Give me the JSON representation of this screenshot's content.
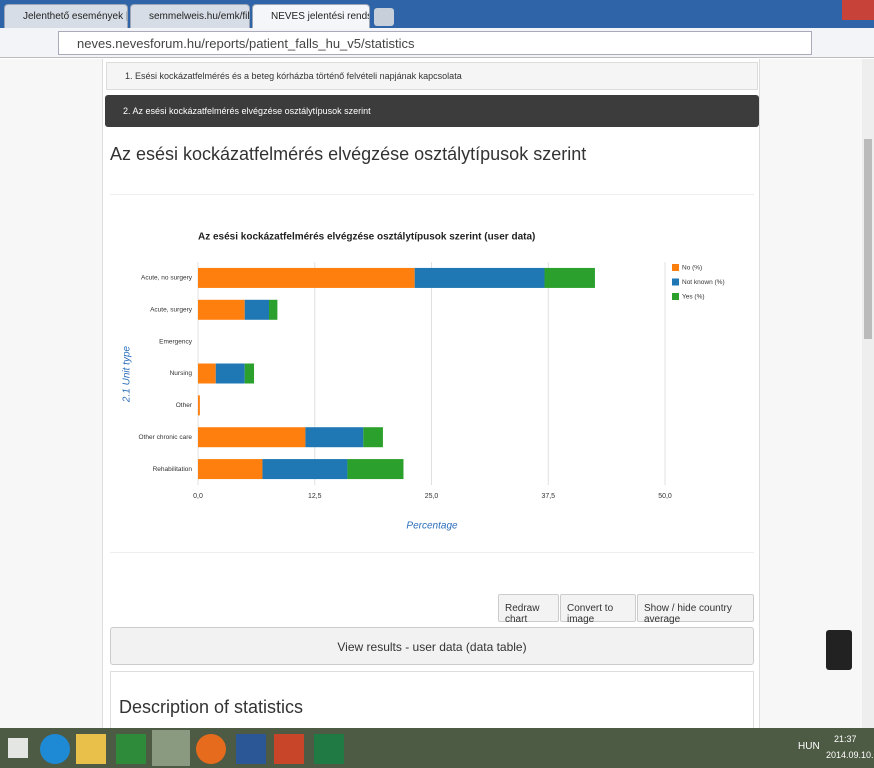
{
  "browser": {
    "tabs": [
      "Jelenthető események | Eg",
      "semmelweis.hu/emk/files",
      "NEVES jelentési rendszer |"
    ],
    "url": "neves.nevesforum.hu/reports/patient_falls_hu_v5/statistics"
  },
  "sections": [
    "1. Esési kockázatfelmérés és a beteg kórházba történő felvételi napjának kapcsolata",
    "2. Az esési kockázatfelmérés elvégzése osztálytípusok szerint"
  ],
  "heading": "Az esési kockázatfelmérés elvégzése osztálytípusok szerint",
  "chart_data": {
    "type": "bar",
    "orientation": "horizontal",
    "stacked": true,
    "title": "Az esési kockázatfelmérés elvégzése osztálytípusok szerint (user data)",
    "x_label": "Percentage",
    "y_label": "2.1 Unit type",
    "categories": [
      "Acute, no surgery",
      "Acute, surgery",
      "Emergency",
      "Nursing",
      "Other",
      "Other chronic care",
      "Rehabilitation"
    ],
    "series": [
      {
        "name": "No (%)",
        "color": "#ff7f0e",
        "values": [
          23.2,
          5.0,
          0,
          1.9,
          0.2,
          11.5,
          6.9
        ]
      },
      {
        "name": "Not known (%)",
        "color": "#1f77b4",
        "values": [
          13.9,
          2.6,
          0,
          3.1,
          0,
          6.2,
          9.1
        ]
      },
      {
        "name": "Yes (%)",
        "color": "#2ca02c",
        "values": [
          5.4,
          0.9,
          0,
          1.0,
          0,
          2.1,
          6.0
        ]
      }
    ],
    "xlim": [
      0,
      50
    ],
    "xticks": [
      {
        "value": 0,
        "label": "0,0"
      },
      {
        "value": 12.5,
        "label": "12,5"
      },
      {
        "value": 25,
        "label": "25,0"
      },
      {
        "value": 37.5,
        "label": "37,5"
      },
      {
        "value": 50,
        "label": "50,0"
      }
    ],
    "grid": true,
    "legend": "right"
  },
  "buttons": [
    "Redraw chart",
    "Convert to image",
    "Show / hide country average"
  ],
  "table_toggle": "View results - user data (data table)",
  "description_title": "Description of statistics",
  "taskbar": {
    "language": "HUN",
    "time": "21:37",
    "date": "2014.09.10."
  }
}
